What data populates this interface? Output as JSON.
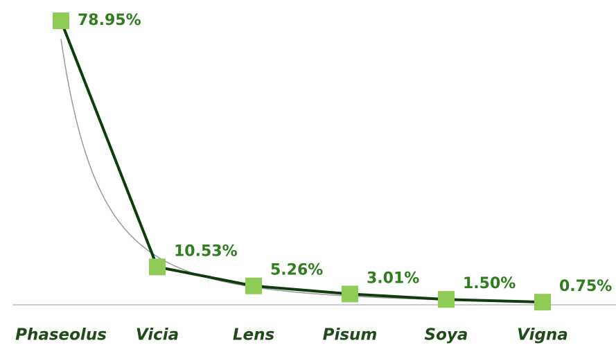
{
  "chart_data": {
    "type": "line",
    "categories": [
      "Phaseolus",
      "Vicia",
      "Lens",
      "Pisum",
      "Soya",
      "Vigna"
    ],
    "values": [
      78.95,
      10.53,
      5.26,
      3.01,
      1.5,
      0.75
    ],
    "value_labels": [
      "78.95%",
      "10.53%",
      "5.26%",
      "3.01%",
      "1.50%",
      "0.75%"
    ],
    "color": "#0d3d0d",
    "marker_color": "#8fcc55",
    "label_color": "#2e7d1e",
    "trendline": "power",
    "trendline_color": "#999999",
    "ylim": [
      0,
      78.95
    ]
  }
}
